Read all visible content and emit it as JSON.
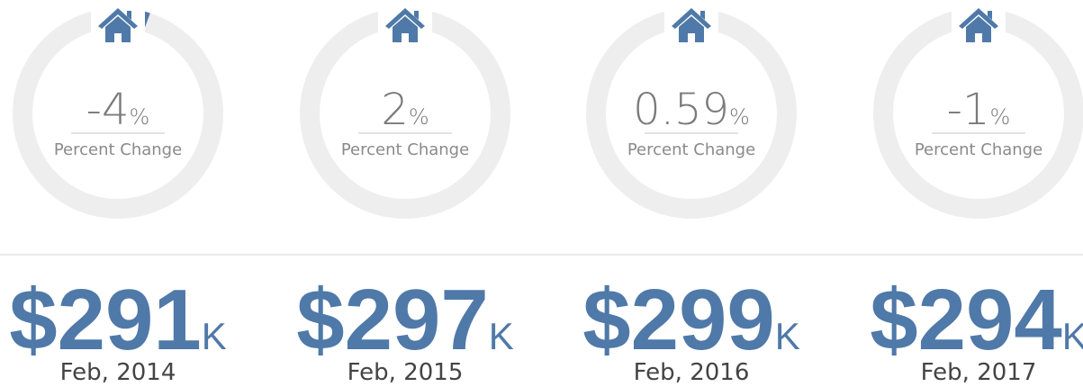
{
  "cards": [
    {
      "change": "-4",
      "unit": "%",
      "label": "Percent Change",
      "price": "$291",
      "suffix": "K",
      "date": "Feb, 2014"
    },
    {
      "change": "2",
      "unit": "%",
      "label": "Percent Change",
      "price": "$297",
      "suffix": "K",
      "date": "Feb, 2015"
    },
    {
      "change": "0.59",
      "unit": "%",
      "label": "Percent Change",
      "price": "$299",
      "suffix": "K",
      "date": "Feb, 2016"
    },
    {
      "change": "-1",
      "unit": "%",
      "label": "Percent Change",
      "price": "$294",
      "suffix": "K",
      "date": "Feb, 2017"
    }
  ]
}
